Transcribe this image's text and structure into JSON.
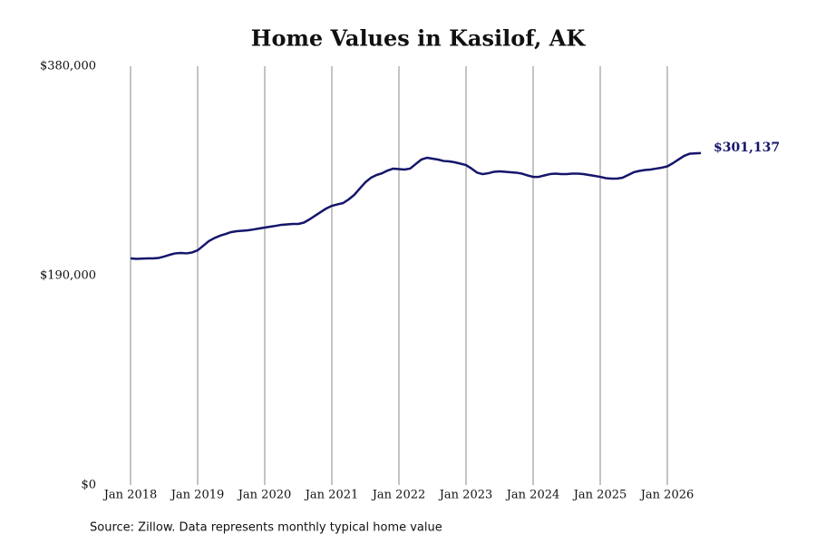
{
  "chart_data": {
    "type": "line",
    "title": "Home Values in Kasilof, AK",
    "source": "Source: Zillow. Data represents monthly typical home value",
    "x": [
      "2018-01",
      "2018-02",
      "2018-03",
      "2018-04",
      "2018-05",
      "2018-06",
      "2018-07",
      "2018-08",
      "2018-09",
      "2018-10",
      "2018-11",
      "2018-12",
      "2019-01",
      "2019-02",
      "2019-03",
      "2019-04",
      "2019-05",
      "2019-06",
      "2019-07",
      "2019-08",
      "2019-09",
      "2019-10",
      "2019-11",
      "2019-12",
      "2020-01",
      "2020-02",
      "2020-03",
      "2020-04",
      "2020-05",
      "2020-06",
      "2020-07",
      "2020-08",
      "2020-09",
      "2020-10",
      "2020-11",
      "2020-12",
      "2021-01",
      "2021-02",
      "2021-03",
      "2021-04",
      "2021-05",
      "2021-06",
      "2021-07",
      "2021-08",
      "2021-09",
      "2021-10",
      "2021-11",
      "2021-12",
      "2022-01",
      "2022-02",
      "2022-03",
      "2022-04",
      "2022-05",
      "2022-06",
      "2022-07",
      "2022-08",
      "2022-09",
      "2022-10",
      "2022-11",
      "2022-12",
      "2023-01",
      "2023-02",
      "2023-03",
      "2023-04",
      "2023-05",
      "2023-06",
      "2023-07",
      "2023-08",
      "2023-09",
      "2023-10",
      "2023-11",
      "2023-12",
      "2024-01",
      "2024-02",
      "2024-03",
      "2024-04",
      "2024-05",
      "2024-06",
      "2024-07",
      "2024-08",
      "2024-09",
      "2024-10",
      "2024-11",
      "2024-12",
      "2025-01",
      "2025-02",
      "2025-03",
      "2025-04",
      "2025-05",
      "2025-06",
      "2025-07",
      "2025-08",
      "2025-09",
      "2025-10",
      "2025-11",
      "2025-12",
      "2026-01",
      "2026-02",
      "2026-03",
      "2026-04",
      "2026-05",
      "2026-06",
      "2026-07"
    ],
    "values": [
      205600,
      205200,
      205400,
      205600,
      205600,
      206000,
      207300,
      208900,
      210200,
      210600,
      210200,
      211000,
      213000,
      217100,
      221300,
      224100,
      226200,
      227800,
      229500,
      230300,
      230700,
      231100,
      231900,
      232800,
      233600,
      234400,
      235200,
      236100,
      236500,
      236900,
      236900,
      238100,
      241000,
      244300,
      247600,
      250900,
      253300,
      254600,
      255800,
      259100,
      263200,
      269000,
      274700,
      278800,
      281300,
      282900,
      285400,
      287100,
      286600,
      286200,
      287100,
      291200,
      295300,
      296900,
      296100,
      295300,
      294000,
      293600,
      292800,
      291600,
      290300,
      287100,
      283400,
      282100,
      282900,
      284200,
      284600,
      284200,
      283800,
      283400,
      282500,
      280900,
      279600,
      279600,
      280900,
      282100,
      282500,
      282100,
      282100,
      282500,
      282500,
      282100,
      281300,
      280500,
      279600,
      278400,
      278000,
      278000,
      278800,
      281300,
      283800,
      285000,
      285800,
      286200,
      287100,
      287900,
      289100,
      292000,
      295300,
      298600,
      300600,
      300900,
      301137
    ],
    "value_labels": [
      null,
      null,
      null,
      null,
      null,
      null,
      null,
      null,
      null,
      null,
      null,
      null,
      null,
      null,
      null,
      null,
      null,
      null,
      null,
      null,
      null,
      null,
      null,
      null,
      null,
      null,
      null,
      null,
      null,
      null,
      null,
      null,
      null,
      null,
      null,
      null,
      null,
      null,
      null,
      null,
      null,
      null,
      null,
      null,
      null,
      null,
      null,
      null,
      null,
      null,
      null,
      null,
      null,
      null,
      null,
      null,
      null,
      null,
      null,
      null,
      null,
      null,
      null,
      null,
      null,
      null,
      null,
      null,
      null,
      null,
      null,
      null,
      null,
      null,
      null,
      null,
      null,
      null,
      null,
      null,
      null,
      null,
      null,
      null,
      null,
      null,
      null,
      null,
      null,
      null,
      null,
      null,
      null,
      null,
      null,
      null,
      null,
      null,
      null,
      null,
      null,
      null,
      "$301,137"
    ],
    "color": "#15156b",
    "ylim": [
      0,
      380000
    ],
    "yticks": [
      {
        "value": 0,
        "label": "$0"
      },
      {
        "value": 190000,
        "label": "$190,000"
      },
      {
        "value": 380000,
        "label": "$380,000"
      }
    ],
    "xticks": [
      {
        "value": "2018-01",
        "label": "Jan 2018"
      },
      {
        "value": "2019-01",
        "label": "Jan 2019"
      },
      {
        "value": "2020-01",
        "label": "Jan 2020"
      },
      {
        "value": "2021-01",
        "label": "Jan 2021"
      },
      {
        "value": "2022-01",
        "label": "Jan 2022"
      },
      {
        "value": "2023-01",
        "label": "Jan 2023"
      },
      {
        "value": "2024-01",
        "label": "Jan 2024"
      },
      {
        "value": "2025-01",
        "label": "Jan 2025"
      },
      {
        "value": "2026-01",
        "label": "Jan 2026"
      }
    ],
    "grid": "x"
  }
}
